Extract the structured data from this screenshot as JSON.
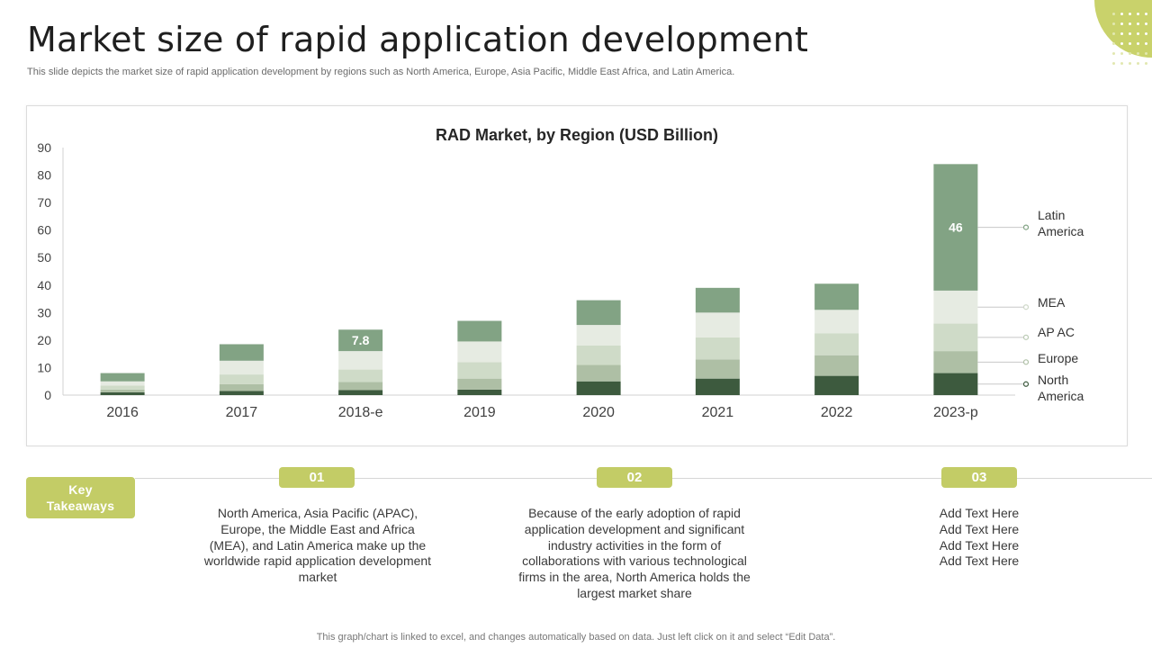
{
  "slide": {
    "title": "Market size of rapid application development",
    "subtitle": "This slide depicts the market size of rapid application development by regions such as North America, Europe, Asia Pacific, Middle East Africa,  and Latin America."
  },
  "colors": {
    "accent": "#c3cc66",
    "north_america": "#3d5a3e",
    "europe": "#aebfa5",
    "ap_ac": "#cfdbc8",
    "mea": "#e6ebe2",
    "latin_america": "#82a384"
  },
  "chart_data": {
    "type": "bar",
    "stacked": true,
    "title": "RAD Market, by Region (USD Billion)",
    "xlabel": "",
    "ylabel": "",
    "ylim": [
      0,
      90
    ],
    "yticks": [
      0,
      10,
      20,
      30,
      40,
      50,
      60,
      70,
      80,
      90
    ],
    "categories": [
      "2016",
      "2017",
      "2018-e",
      "2019",
      "2020",
      "2021",
      "2022",
      "2023-p"
    ],
    "series": [
      {
        "name": "North America",
        "values": [
          1,
          1.5,
          1.8,
          2,
          5,
          6,
          7,
          8
        ]
      },
      {
        "name": "Europe",
        "values": [
          1,
          2.5,
          3,
          4,
          6,
          7,
          7.5,
          8
        ]
      },
      {
        "name": "AP AC",
        "values": [
          1.5,
          3.5,
          4.5,
          6,
          7,
          8,
          8,
          10
        ]
      },
      {
        "name": "MEA",
        "values": [
          1.5,
          5,
          6.7,
          7.5,
          7.5,
          9,
          8.5,
          12
        ]
      },
      {
        "name": "Latin America",
        "values": [
          3,
          6,
          7.8,
          7.5,
          9,
          9,
          9.5,
          46
        ]
      }
    ],
    "data_labels": [
      {
        "category": "2018-e",
        "series": "Latin America",
        "text": "7.8"
      },
      {
        "category": "2023-p",
        "series": "Latin America",
        "text": "46"
      }
    ],
    "legend": {
      "placement": "right",
      "order": [
        "Latin America",
        "MEA",
        "AP AC",
        "Europe",
        "North America"
      ]
    },
    "grid": false
  },
  "takeaways": {
    "key_label": "Key Takeaways",
    "items": [
      {
        "number": "01",
        "text": "North America, Asia Pacific (APAC), Europe, the Middle East and Africa (MEA), and Latin America make up the worldwide rapid application development market"
      },
      {
        "number": "02",
        "text": "Because of the early adoption of rapid application development and significant industry activities in the form of collaborations with various technological firms in the area, North America holds the largest market share"
      },
      {
        "number": "03",
        "text": "Add Text Here\nAdd Text Here\nAdd Text Here\nAdd Text Here"
      }
    ]
  },
  "footer": {
    "text": "This graph/chart is linked to excel,  and changes automatically based on data. Just left click on it and select “Edit Data”."
  }
}
